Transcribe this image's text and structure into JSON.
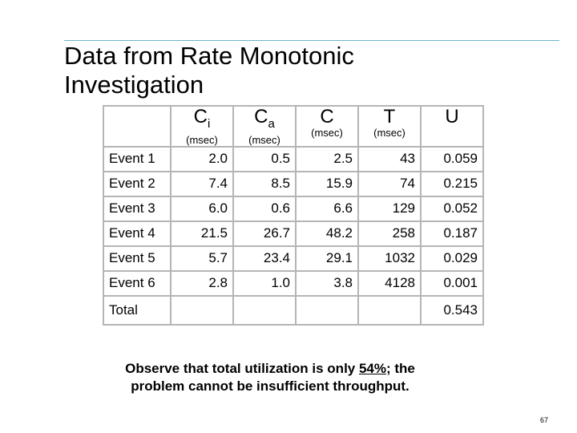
{
  "title": {
    "line1": "Data from Rate Monotonic",
    "line2": "Investigation"
  },
  "table": {
    "header": [
      {
        "main": "C",
        "sub": "i",
        "unit": "(msec)"
      },
      {
        "main": "C",
        "sub": "a",
        "unit": "(msec)"
      },
      {
        "main": "C",
        "unit": "(msec)"
      },
      {
        "main": "T",
        "unit": "(msec)"
      },
      {
        "main": "U"
      }
    ],
    "rows": [
      [
        "Event 1",
        "2.0",
        "0.5",
        "2.5",
        "43",
        "0.059"
      ],
      [
        "Event 2",
        "7.4",
        "8.5",
        "15.9",
        "74",
        "0.215"
      ],
      [
        "Event 3",
        "6.0",
        "0.6",
        "6.6",
        "129",
        "0.052"
      ],
      [
        "Event 4",
        "21.5",
        "26.7",
        "48.2",
        "258",
        "0.187"
      ],
      [
        "Event 5",
        "5.7",
        "23.4",
        "29.1",
        "1032",
        "0.029"
      ],
      [
        "Event 6",
        "2.8",
        "1.0",
        "3.8",
        "4128",
        "0.001"
      ]
    ],
    "total": {
      "label": "Total",
      "U": "0.543"
    }
  },
  "caption": {
    "lead": "Observe that total utilization is only ",
    "emphasis": "54%",
    "tail": "; the",
    "line2": "problem cannot be insufficient throughput."
  },
  "page_number": "67"
}
